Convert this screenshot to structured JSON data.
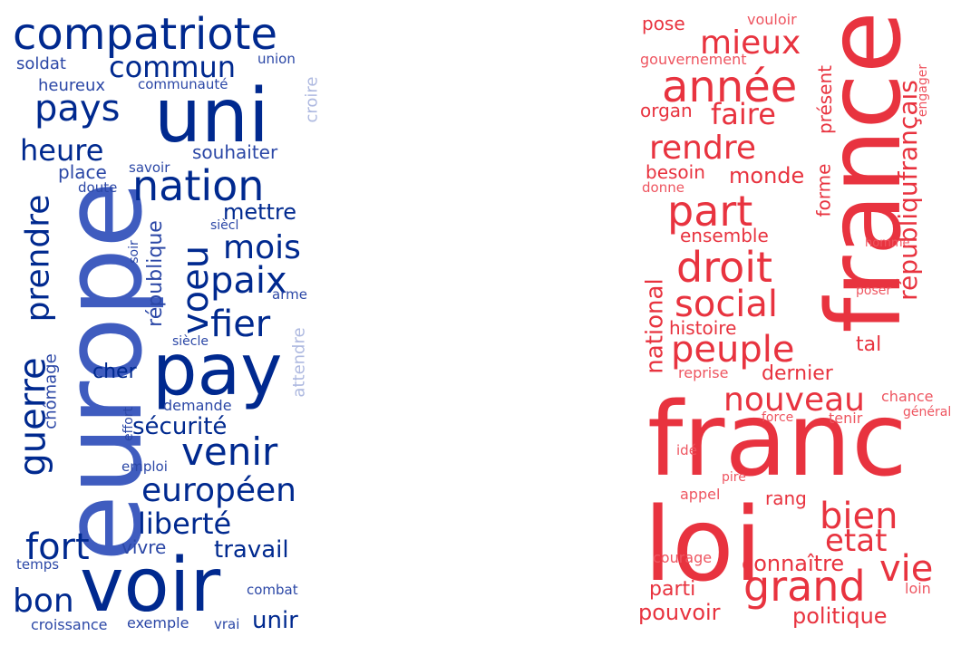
{
  "colors": {
    "blue_dark": "#00298f",
    "blue_mid": "#2b47a6",
    "blue_light": "#3f5cbf",
    "blue_pale": "#aeb9e0",
    "red": "#e8333f",
    "red_light": "#ee5560"
  },
  "left_cloud": {
    "words": [
      "compatriote",
      "uni",
      "europe",
      "pay",
      "voir",
      "commun",
      "soldat",
      "union",
      "croire",
      "heureux",
      "communauté",
      "pays",
      "heure",
      "souhaiter",
      "nation",
      "prendre",
      "place",
      "savoir",
      "doute",
      "mettre",
      "siècl",
      "mois",
      "voeu",
      "paix",
      "république",
      "soir",
      "arme",
      "guerre",
      "fier",
      "attendre",
      "chômage",
      "siècle",
      "cher",
      "demande",
      "sécurité",
      "effort",
      "venir",
      "emploi",
      "européen",
      "liberté",
      "fort",
      "vivre",
      "travail",
      "temps",
      "bon",
      "combat",
      "unir",
      "croissance",
      "exemple",
      "vrai"
    ]
  },
  "right_cloud": {
    "words": [
      "france",
      "franc",
      "loi",
      "pose",
      "vouloir",
      "gouvernement",
      "mieux",
      "année",
      "présent",
      "engager",
      "organ",
      "faire",
      "rendre",
      "besoin",
      "monde",
      "donne",
      "forme",
      "républiqufrançais",
      "part",
      "ensemble",
      "homme",
      "droit",
      "national",
      "social",
      "poser",
      "histoire",
      "peuple",
      "tal",
      "reprise",
      "dernier",
      "nouveau",
      "chance",
      "général",
      "force",
      "tenir",
      "idé",
      "pire",
      "appel",
      "rang",
      "bien",
      "etat",
      "courage",
      "connaître",
      "vie",
      "grand",
      "parti",
      "loin",
      "pouvoir",
      "politique"
    ]
  }
}
